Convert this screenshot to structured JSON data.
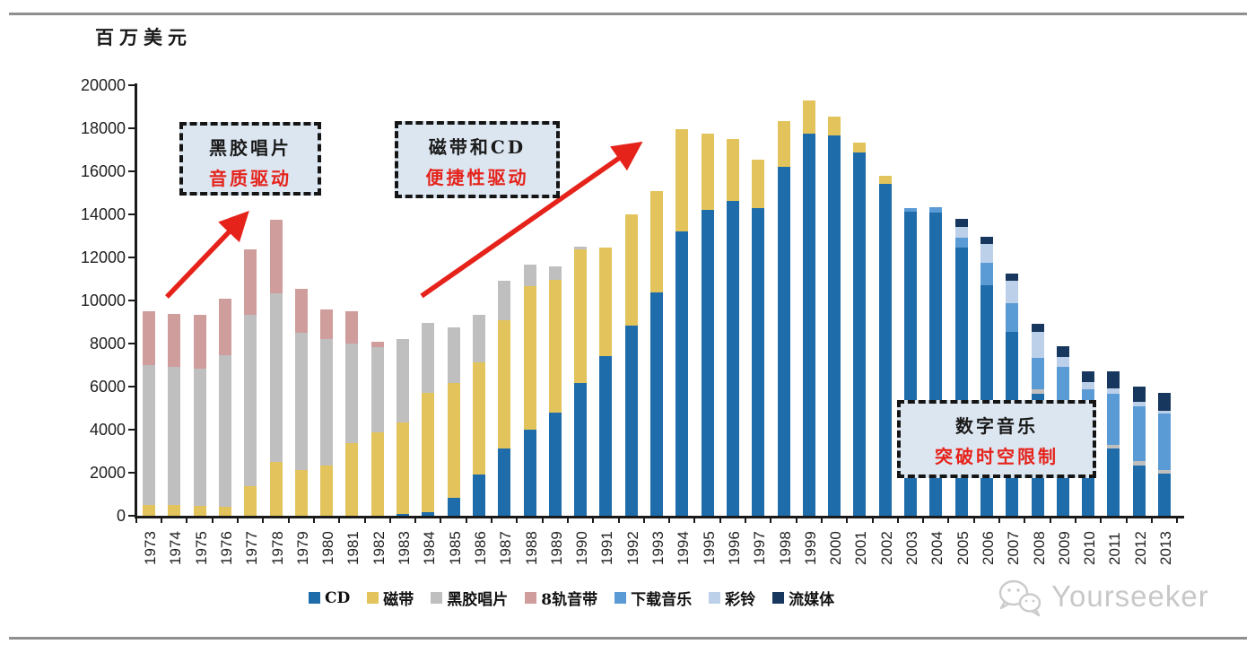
{
  "page": {
    "watermark": "Yourseeker"
  },
  "chart_data": {
    "type": "bar",
    "stacked": true,
    "title": "",
    "xlabel": "",
    "ylabel": "百万美元",
    "ylim": [
      0,
      20000
    ],
    "ytick_step": 2000,
    "grid": false,
    "legend_position": "bottom",
    "categories": [
      "1973",
      "1974",
      "1975",
      "1976",
      "1977",
      "1978",
      "1979",
      "1980",
      "1981",
      "1982",
      "1983",
      "1984",
      "1985",
      "1986",
      "1987",
      "1988",
      "1989",
      "1990",
      "1991",
      "1992",
      "1993",
      "1994",
      "1995",
      "1996",
      "1997",
      "1998",
      "1999",
      "2000",
      "2001",
      "2002",
      "2003",
      "2004",
      "2005",
      "2006",
      "2007",
      "2008",
      "2009",
      "2010",
      "2011",
      "2012",
      "2013"
    ],
    "series": [
      {
        "name": "CD",
        "color": "#1F6CAB",
        "values": [
          0,
          0,
          0,
          0,
          0,
          0,
          0,
          0,
          0,
          0,
          100,
          150,
          830,
          1930,
          3135,
          4000,
          4800,
          6180,
          7410,
          8830,
          10390,
          13220,
          14200,
          14630,
          14290,
          16220,
          17760,
          17660,
          16870,
          15430,
          14140,
          14100,
          12450,
          10700,
          8555,
          5660,
          4620,
          3500,
          3105,
          2345,
          1975
        ]
      },
      {
        "name": "磁带",
        "color": "#E3C45C",
        "values": [
          490,
          490,
          440,
          415,
          1380,
          2485,
          2140,
          2345,
          3380,
          3870,
          4250,
          5575,
          5350,
          5180,
          5935,
          6660,
          6175,
          6210,
          5050,
          5170,
          4710,
          4720,
          3560,
          2890,
          2240,
          2095,
          1530,
          900,
          480,
          370,
          0,
          0,
          0,
          0,
          0,
          0,
          0,
          0,
          0,
          0,
          0
        ]
      },
      {
        "name": "黑胶唱片",
        "color": "#BFBFBF",
        "values": [
          6510,
          6410,
          6390,
          7035,
          7935,
          7865,
          6350,
          5865,
          4620,
          3975,
          3860,
          3215,
          2580,
          2235,
          1830,
          1000,
          590,
          100,
          0,
          0,
          0,
          0,
          0,
          0,
          0,
          0,
          0,
          0,
          0,
          0,
          0,
          0,
          0,
          0,
          0,
          205,
          0,
          0,
          205,
          205,
          165
        ]
      },
      {
        "name": "8轨音带",
        "color": "#CF9D9B",
        "values": [
          2480,
          2490,
          2515,
          2625,
          3065,
          3410,
          2070,
          1380,
          1520,
          230,
          0,
          0,
          0,
          0,
          0,
          0,
          0,
          0,
          0,
          0,
          0,
          0,
          0,
          0,
          0,
          0,
          0,
          0,
          0,
          0,
          0,
          0,
          0,
          0,
          0,
          0,
          0,
          0,
          0,
          0,
          0
        ]
      },
      {
        "name": "下载音乐",
        "color": "#5B9BD5",
        "values": [
          0,
          0,
          0,
          0,
          0,
          0,
          0,
          0,
          0,
          0,
          0,
          0,
          0,
          0,
          0,
          0,
          0,
          0,
          0,
          0,
          0,
          0,
          0,
          0,
          0,
          0,
          0,
          0,
          0,
          0,
          140,
          220,
          455,
          1040,
          1310,
          1450,
          2280,
          2365,
          2345,
          2550,
          2590
        ]
      },
      {
        "name": "彩铃",
        "color": "#BCD0EA",
        "values": [
          0,
          0,
          0,
          0,
          0,
          0,
          0,
          0,
          0,
          0,
          0,
          0,
          0,
          0,
          0,
          0,
          0,
          0,
          0,
          0,
          0,
          0,
          0,
          0,
          0,
          0,
          0,
          0,
          0,
          0,
          0,
          0,
          520,
          900,
          1035,
          1240,
          480,
          345,
          275,
          205,
          165
        ]
      },
      {
        "name": "流媒体",
        "color": "#17375E",
        "values": [
          0,
          0,
          0,
          0,
          0,
          0,
          0,
          0,
          0,
          0,
          0,
          0,
          0,
          0,
          0,
          0,
          0,
          0,
          0,
          0,
          0,
          0,
          0,
          0,
          0,
          0,
          0,
          0,
          0,
          0,
          0,
          0,
          375,
          315,
          345,
          345,
          485,
          510,
          760,
          690,
          830
        ]
      }
    ],
    "annotations": [
      {
        "line1": "黑胶唱片",
        "line2": "音质驱动"
      },
      {
        "line1": "磁带和CD",
        "line2": "便捷性驱动"
      },
      {
        "line1": "数字音乐",
        "line2": "突破时空限制"
      }
    ]
  }
}
